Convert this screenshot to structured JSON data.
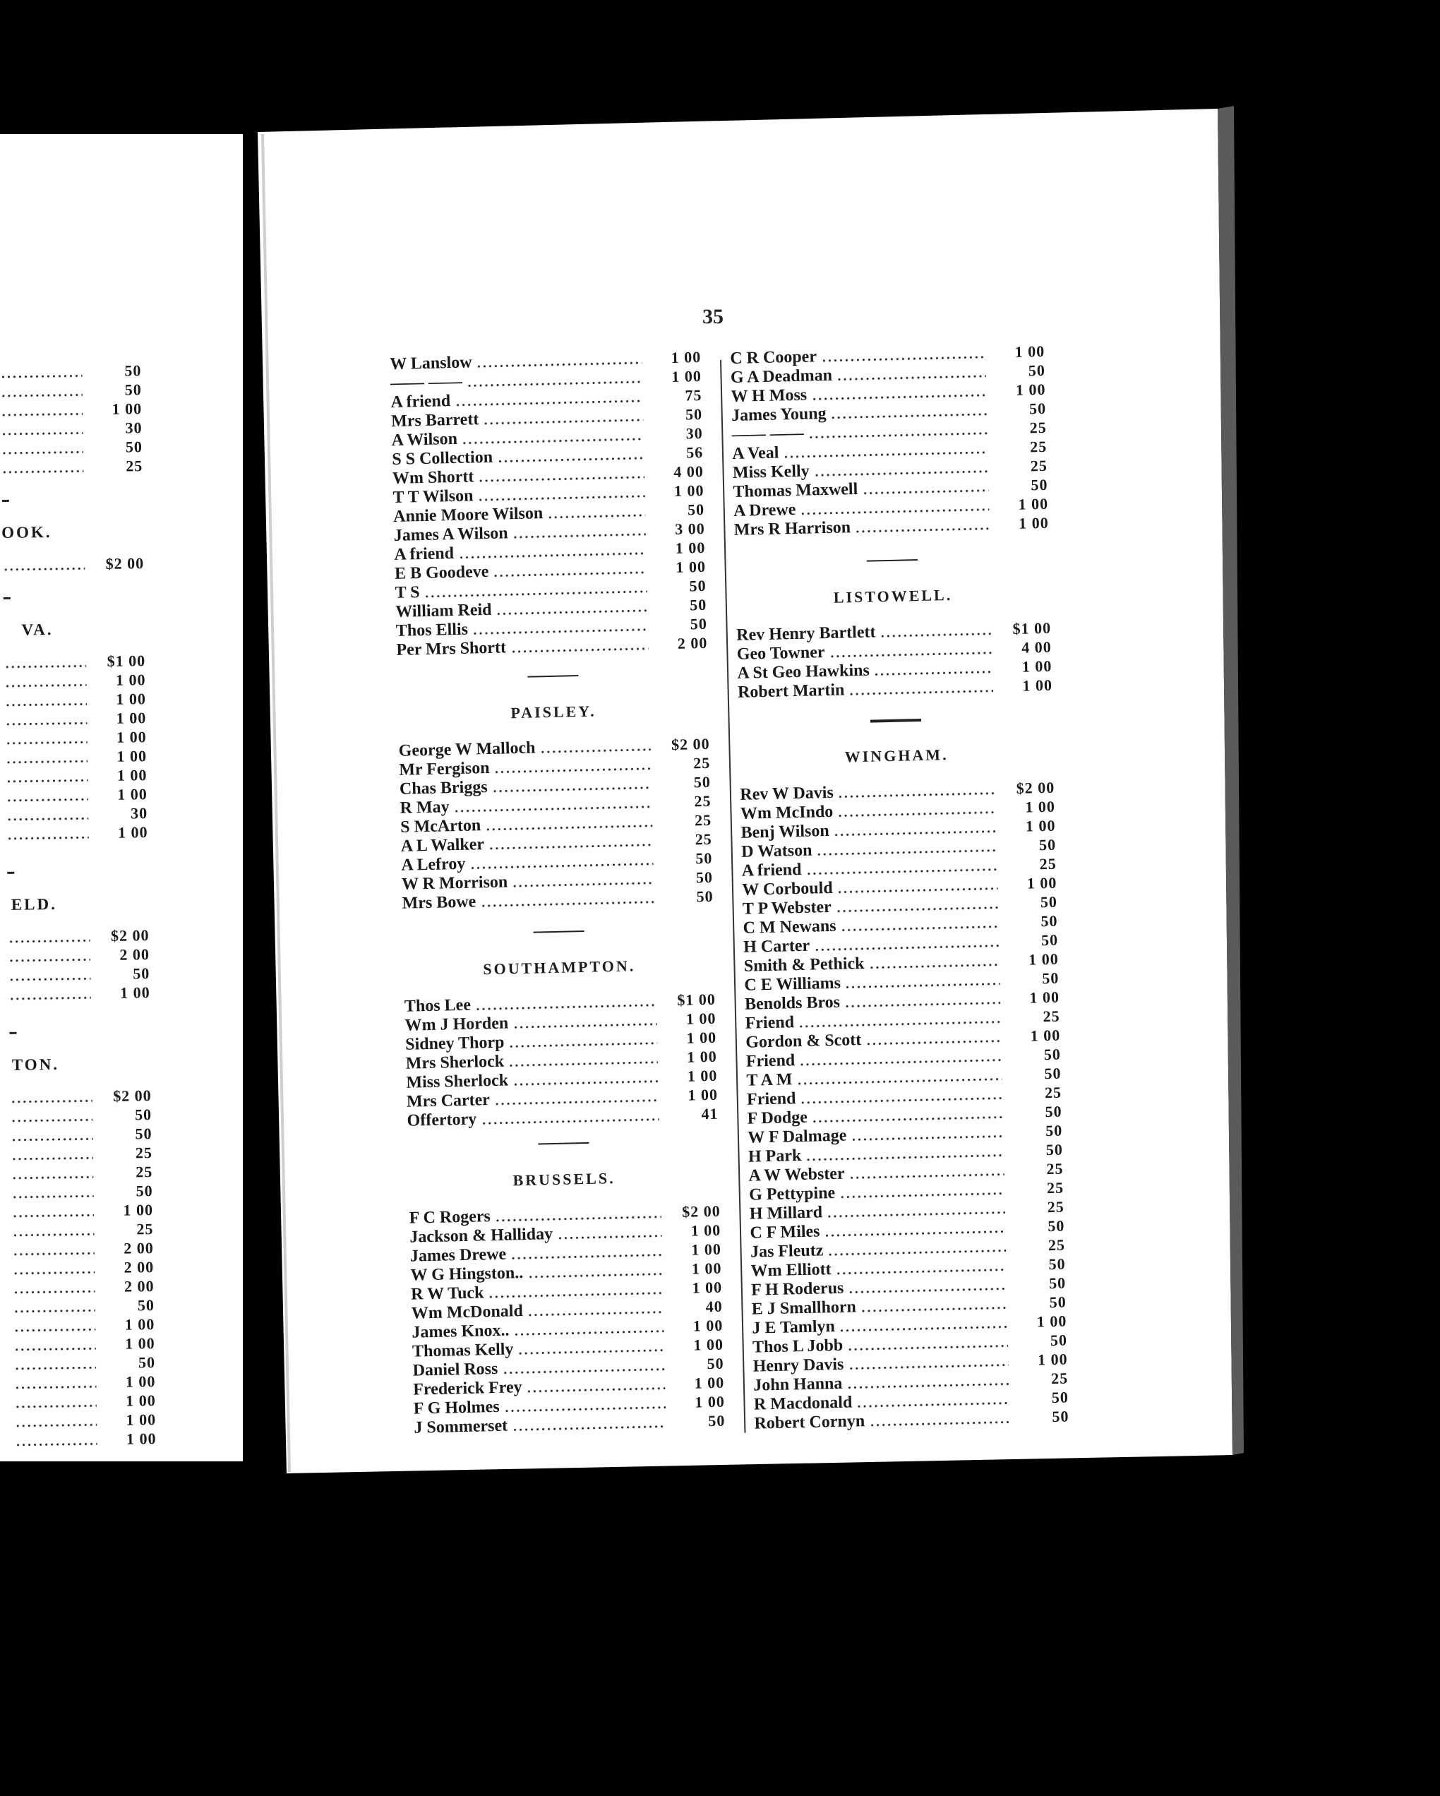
{
  "page_number": "35",
  "left_page": {
    "sections": [
      {
        "heading": "",
        "amounts": [
          "50",
          "50",
          "1 00",
          "30",
          "50",
          "25"
        ]
      },
      {
        "heading": "OOK.",
        "amounts": [
          "$2 00"
        ]
      },
      {
        "heading": "VA.",
        "amounts": [
          "$1 00",
          "1 00",
          "1 00",
          "1 00",
          "1 00",
          "1 00",
          "1 00",
          "1 00",
          "30",
          "1 00"
        ]
      },
      {
        "heading": "ELD.",
        "amounts": [
          "$2 00",
          "2 00",
          "50",
          "1 00"
        ]
      },
      {
        "heading": "TON.",
        "amounts": [
          "$2 00",
          "50",
          "50",
          "25",
          "25",
          "50",
          "1 00",
          "25",
          "2 00",
          "2 00",
          "2 00",
          "50",
          "1 00",
          "1 00",
          "50",
          "1 00",
          "1 00",
          "1 00",
          "1 00"
        ]
      }
    ]
  },
  "columns": {
    "left": {
      "sections": [
        {
          "heading": "",
          "entries": [
            {
              "name": "W Lanslow",
              "amount": "1 00"
            },
            {
              "name": "—— ——",
              "amount": "1 00"
            },
            {
              "name": "A friend",
              "amount": "75"
            },
            {
              "name": "Mrs Barrett",
              "amount": "50"
            },
            {
              "name": "A Wilson",
              "amount": "30"
            },
            {
              "name": "S S Collection",
              "amount": "56"
            },
            {
              "name": "Wm Shortt",
              "amount": "4 00"
            },
            {
              "name": "T T Wilson",
              "amount": "1 00"
            },
            {
              "name": "Annie Moore Wilson",
              "amount": "50"
            },
            {
              "name": "James A Wilson",
              "amount": "3 00"
            },
            {
              "name": "A friend",
              "amount": "1 00"
            },
            {
              "name": "E B Goodeve",
              "amount": "1 00"
            },
            {
              "name": "T S",
              "amount": "50"
            },
            {
              "name": "William Reid",
              "amount": "50"
            },
            {
              "name": "Thos Ellis",
              "amount": "50"
            },
            {
              "name": "Per Mrs Shortt",
              "amount": "2 00"
            }
          ]
        },
        {
          "heading": "PAISLEY.",
          "entries": [
            {
              "name": "George W Malloch",
              "amount": "$2 00"
            },
            {
              "name": "Mr Fergison",
              "amount": "25"
            },
            {
              "name": "Chas Briggs",
              "amount": "50"
            },
            {
              "name": "R May",
              "amount": "25"
            },
            {
              "name": "S McArton",
              "amount": "25"
            },
            {
              "name": "A L Walker",
              "amount": "25"
            },
            {
              "name": "A Lefroy",
              "amount": "50"
            },
            {
              "name": "W R Morrison",
              "amount": "50"
            },
            {
              "name": "Mrs Bowe",
              "amount": "50"
            }
          ]
        },
        {
          "heading": "SOUTHAMPTON.",
          "entries": [
            {
              "name": "Thos Lee",
              "amount": "$1 00"
            },
            {
              "name": "Wm J Horden",
              "amount": "1 00"
            },
            {
              "name": "Sidney Thorp",
              "amount": "1 00"
            },
            {
              "name": "Mrs Sherlock",
              "amount": "1 00"
            },
            {
              "name": "Miss Sherlock",
              "amount": "1 00"
            },
            {
              "name": "Mrs Carter",
              "amount": "1 00"
            },
            {
              "name": "Offertory",
              "amount": "41"
            }
          ]
        },
        {
          "heading": "BRUSSELS.",
          "entries": [
            {
              "name": "F C Rogers",
              "amount": "$2 00"
            },
            {
              "name": "Jackson & Halliday",
              "amount": "1 00"
            },
            {
              "name": "James Drewe",
              "amount": "1 00"
            },
            {
              "name": "W G Hingston..",
              "amount": "1 00"
            },
            {
              "name": "R W Tuck",
              "amount": "1 00"
            },
            {
              "name": "Wm McDonald",
              "amount": "40"
            },
            {
              "name": "James Knox..",
              "amount": "1 00"
            },
            {
              "name": "Thomas Kelly",
              "amount": "1 00"
            },
            {
              "name": "Daniel Ross",
              "amount": "50"
            },
            {
              "name": "Frederick Frey",
              "amount": "1 00"
            },
            {
              "name": "F G Holmes",
              "amount": "1 00"
            },
            {
              "name": "J Sommerset",
              "amount": "50"
            }
          ]
        }
      ]
    },
    "right": {
      "sections": [
        {
          "heading": "",
          "entries": [
            {
              "name": "C R Cooper",
              "amount": "1 00"
            },
            {
              "name": "G A Deadman",
              "amount": "50"
            },
            {
              "name": "W H Moss",
              "amount": "1 00"
            },
            {
              "name": "James Young",
              "amount": "50"
            },
            {
              "name": "—— ——",
              "amount": "25"
            },
            {
              "name": "A Veal",
              "amount": "25"
            },
            {
              "name": "Miss Kelly",
              "amount": "25"
            },
            {
              "name": "Thomas Maxwell",
              "amount": "50"
            },
            {
              "name": "A Drewe",
              "amount": "1 00"
            },
            {
              "name": "Mrs R Harrison",
              "amount": "1 00"
            }
          ]
        },
        {
          "heading": "LISTOWELL.",
          "entries": [
            {
              "name": "Rev Henry Bartlett",
              "amount": "$1 00"
            },
            {
              "name": "Geo Towner",
              "amount": "4 00"
            },
            {
              "name": "A St Geo Hawkins",
              "amount": "1 00"
            },
            {
              "name": "Robert Martin",
              "amount": "1 00"
            }
          ]
        },
        {
          "heading": "WINGHAM.",
          "entries": [
            {
              "name": "Rev W Davis",
              "amount": "$2 00"
            },
            {
              "name": "Wm McIndo",
              "amount": "1 00"
            },
            {
              "name": "Benj Wilson",
              "amount": "1 00"
            },
            {
              "name": "D Watson",
              "amount": "50"
            },
            {
              "name": "A friend",
              "amount": "25"
            },
            {
              "name": "W Corbould",
              "amount": "1 00"
            },
            {
              "name": "T P Webster",
              "amount": "50"
            },
            {
              "name": "C M Newans",
              "amount": "50"
            },
            {
              "name": "H Carter",
              "amount": "50"
            },
            {
              "name": "Smith & Pethick",
              "amount": "1 00"
            },
            {
              "name": "C E Williams",
              "amount": "50"
            },
            {
              "name": "Benolds Bros",
              "amount": "1 00"
            },
            {
              "name": "Friend",
              "amount": "25"
            },
            {
              "name": "Gordon & Scott",
              "amount": "1 00"
            },
            {
              "name": "Friend",
              "amount": "50"
            },
            {
              "name": "T A M",
              "amount": "50"
            },
            {
              "name": "Friend",
              "amount": "25"
            },
            {
              "name": "F Dodge",
              "amount": "50"
            },
            {
              "name": "W F Dalmage",
              "amount": "50"
            },
            {
              "name": "H Park",
              "amount": "50"
            },
            {
              "name": "A W Webster",
              "amount": "25"
            },
            {
              "name": "G Pettypine",
              "amount": "25"
            },
            {
              "name": "H Millard",
              "amount": "25"
            },
            {
              "name": "C F Miles",
              "amount": "50"
            },
            {
              "name": "Jas Fleutz",
              "amount": "25"
            },
            {
              "name": "Wm Elliott",
              "amount": "50"
            },
            {
              "name": "F H Roderus",
              "amount": "50"
            },
            {
              "name": "E J Smallhorn",
              "amount": "50"
            },
            {
              "name": "J E Tamlyn",
              "amount": "1 00"
            },
            {
              "name": "Thos L Jobb",
              "amount": "50"
            },
            {
              "name": "Henry Davis",
              "amount": "1 00"
            },
            {
              "name": "John Hanna",
              "amount": "25"
            },
            {
              "name": "R Macdonald",
              "amount": "50"
            },
            {
              "name": "Robert Cornyn",
              "amount": "50"
            }
          ]
        }
      ]
    }
  },
  "colors": {
    "background": "#000000",
    "paper": "#ffffff",
    "ink": "#1a1a1a",
    "page_edge": "#5a5a5a"
  }
}
